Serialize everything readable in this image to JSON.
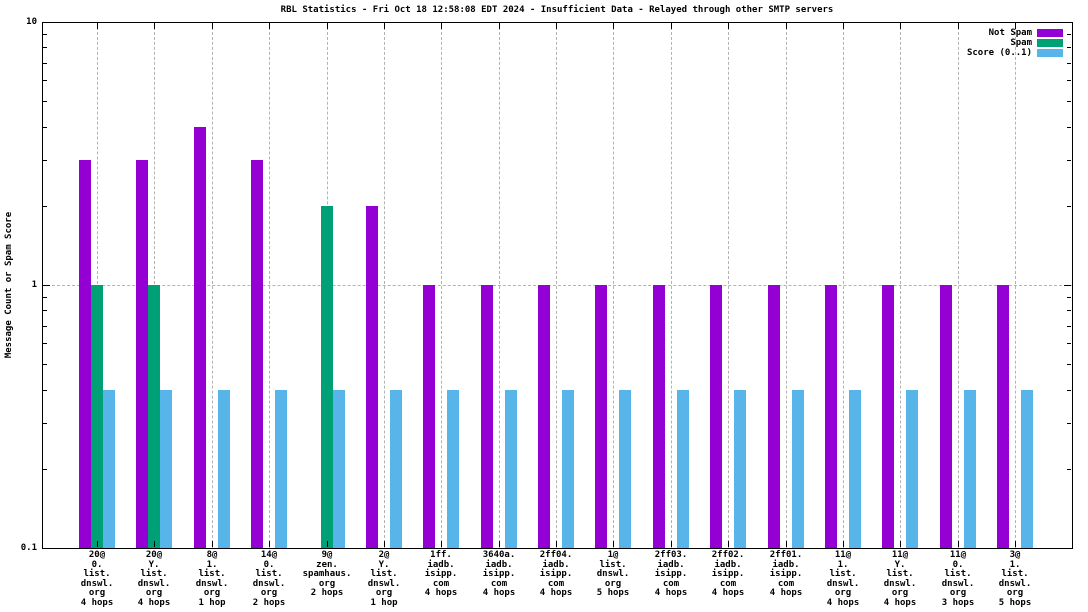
{
  "title": "RBL Statistics - Fri Oct 18 12:58:08 EDT 2024 - Insufficient Data - Relayed through other SMTP servers",
  "ylabel": "Message Count or Spam Score",
  "legend": [
    {
      "label": "Not Spam",
      "color": "#9400d3"
    },
    {
      "label": "Spam",
      "color": "#00a077"
    },
    {
      "label": "Score (0..1)",
      "color": "#57b5e9"
    }
  ],
  "colors": {
    "not_spam": "#9400d3",
    "spam": "#00a077",
    "score": "#57b5e9",
    "grid": "#b3b3b3",
    "axis": "#000000",
    "background": "#ffffff"
  },
  "chart_data": {
    "type": "bar",
    "title": "RBL Statistics - Fri Oct 18 12:58:08 EDT 2024 - Insufficient Data - Relayed through other SMTP servers",
    "xlabel": "",
    "ylabel": "Message Count or Spam Score",
    "y_scale": "log",
    "ylim": [
      0.1,
      10
    ],
    "yticks_labeled": [
      "0.1",
      "1",
      "10"
    ],
    "yticks_values": [
      0.1,
      1,
      10
    ],
    "yticks_minor": [
      0.2,
      0.3,
      0.4,
      0.5,
      0.6,
      0.7,
      0.8,
      0.9,
      2,
      3,
      4,
      5,
      6,
      7,
      8,
      9
    ],
    "grid": {
      "vertical_dashed_per_category": true,
      "horizontal_dashed_at": 1
    },
    "legend_position": "top-right-inside",
    "categories": [
      [
        "20@",
        "0.",
        "list.",
        "dnswl.",
        "org",
        "4 hops"
      ],
      [
        "20@",
        "Y.",
        "list.",
        "dnswl.",
        "org",
        "4 hops"
      ],
      [
        "8@",
        "1.",
        "list.",
        "dnswl.",
        "org",
        "1 hop"
      ],
      [
        "14@",
        "0.",
        "list.",
        "dnswl.",
        "org",
        "2 hops"
      ],
      [
        "9@",
        "zen.",
        "spamhaus.",
        "org",
        "2 hops"
      ],
      [
        "2@",
        "Y.",
        "list.",
        "dnswl.",
        "org",
        "1 hop"
      ],
      [
        "1ff.",
        "iadb.",
        "isipp.",
        "com",
        "4 hops"
      ],
      [
        "3640a.",
        "iadb.",
        "isipp.",
        "com",
        "4 hops"
      ],
      [
        "2ff04.",
        "iadb.",
        "isipp.",
        "com",
        "4 hops"
      ],
      [
        "1@",
        "list.",
        "dnswl.",
        "org",
        "5 hops"
      ],
      [
        "2ff03.",
        "iadb.",
        "isipp.",
        "com",
        "4 hops"
      ],
      [
        "2ff02.",
        "iadb.",
        "isipp.",
        "com",
        "4 hops"
      ],
      [
        "2ff01.",
        "iadb.",
        "isipp.",
        "com",
        "4 hops"
      ],
      [
        "11@",
        "1.",
        "list.",
        "dnswl.",
        "org",
        "4 hops"
      ],
      [
        "11@",
        "Y.",
        "list.",
        "dnswl.",
        "org",
        "4 hops"
      ],
      [
        "11@",
        "0.",
        "list.",
        "dnswl.",
        "org",
        "3 hops"
      ],
      [
        "3@",
        "1.",
        "list.",
        "dnswl.",
        "org",
        "5 hops"
      ]
    ],
    "series": [
      {
        "name": "Not Spam",
        "color": "#9400d3",
        "values": [
          3,
          3,
          4,
          3,
          null,
          2,
          1,
          1,
          1,
          1,
          1,
          1,
          1,
          1,
          1,
          1,
          1
        ]
      },
      {
        "name": "Spam",
        "color": "#00a077",
        "values": [
          1,
          1,
          null,
          null,
          2,
          null,
          null,
          null,
          null,
          null,
          null,
          null,
          null,
          null,
          null,
          null,
          null
        ]
      },
      {
        "name": "Score (0..1)",
        "color": "#57b5e9",
        "values": [
          0.4,
          0.4,
          0.4,
          0.4,
          0.4,
          0.4,
          0.4,
          0.4,
          0.4,
          0.4,
          0.4,
          0.4,
          0.4,
          0.4,
          0.4,
          0.4,
          0.4
        ]
      }
    ]
  }
}
